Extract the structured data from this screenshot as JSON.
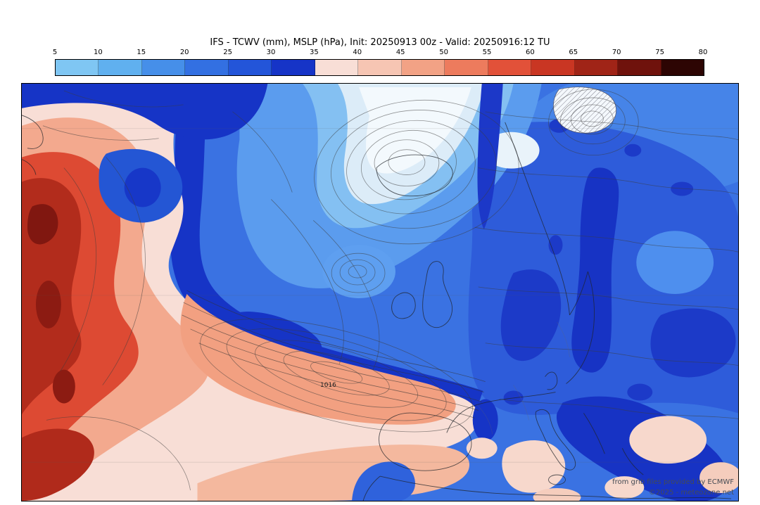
{
  "header": {
    "title": "IFS - TCWV (mm), MSLP (hPa), Init: 20250913 00z - Valid: 20250916:12 TU"
  },
  "colorbar": {
    "ticks": [
      "5",
      "10",
      "15",
      "20",
      "25",
      "30",
      "35",
      "40",
      "45",
      "50",
      "55",
      "60",
      "65",
      "70",
      "75",
      "80"
    ],
    "colors": [
      "#7fc6f3",
      "#60b0ef",
      "#468fe9",
      "#3370e2",
      "#2355d9",
      "#1634c7",
      "#f8ded6",
      "#f6c5b3",
      "#f2a285",
      "#ed7b5d",
      "#e25139",
      "#c93623",
      "#a02417",
      "#6f120c",
      "#2d0503"
    ]
  },
  "map": {
    "pressure_label": "1016",
    "attribution_line1": "from grib files provided by ECMWF",
    "attribution_line2": "©2025 - meteozone.net"
  }
}
